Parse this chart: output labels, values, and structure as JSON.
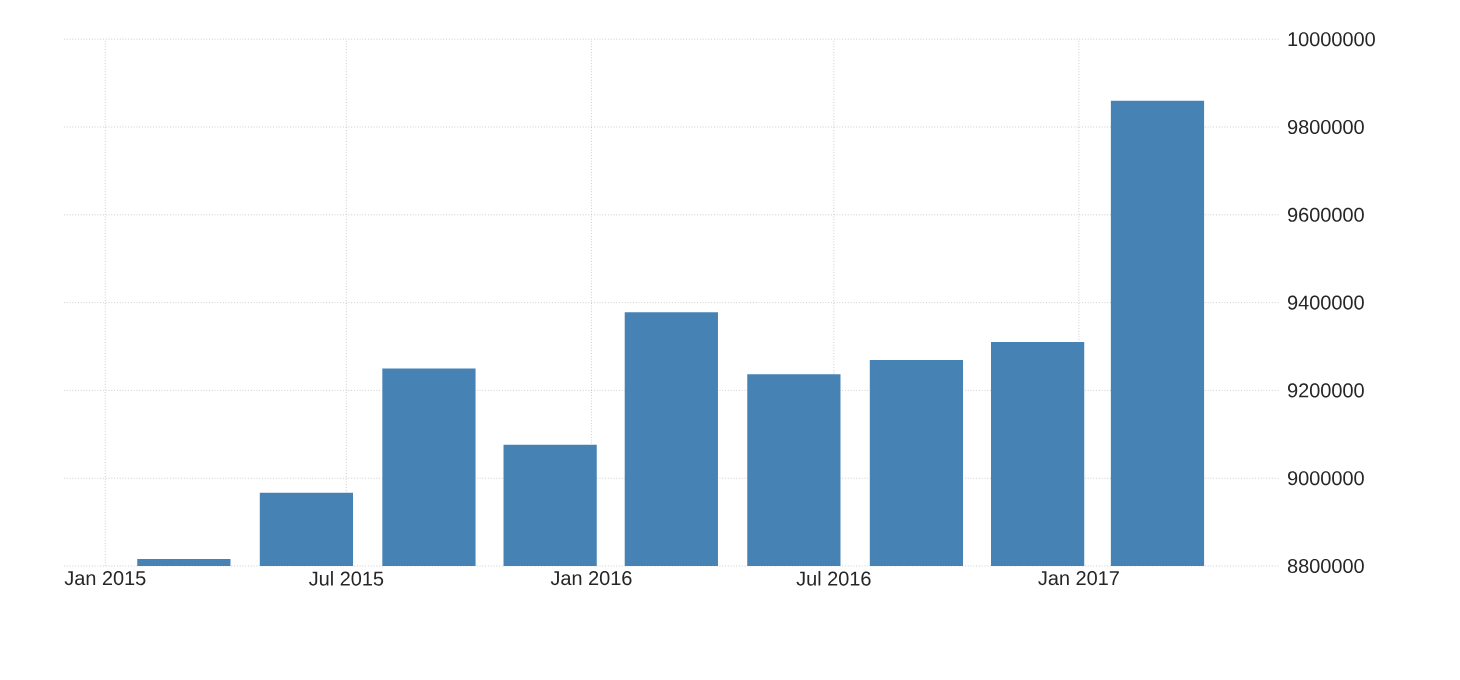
{
  "chart_data": {
    "type": "bar",
    "x": [
      "2015-03",
      "2015-06",
      "2015-09",
      "2015-12",
      "2016-03",
      "2016-06",
      "2016-09",
      "2016-12",
      "2017-03"
    ],
    "values": [
      8816000,
      8967000,
      9250000,
      9076000,
      9378000,
      9237000,
      9269000,
      9310000,
      9860000
    ],
    "color": "#4682b4",
    "xlim": [
      "2014-12-01",
      "2017-06-01"
    ],
    "xticks": [
      {
        "value": "2015-01",
        "label": "Jan 2015"
      },
      {
        "value": "2015-07",
        "label": "Jul 2015"
      },
      {
        "value": "2016-01",
        "label": "Jan 2016"
      },
      {
        "value": "2016-07",
        "label": "Jul 2016"
      },
      {
        "value": "2017-01",
        "label": "Jan 2017"
      }
    ],
    "ylim": [
      8800000,
      10000000
    ],
    "yticks": [
      8800000,
      9000000,
      9200000,
      9400000,
      9600000,
      9800000,
      10000000
    ],
    "grid": true
  }
}
